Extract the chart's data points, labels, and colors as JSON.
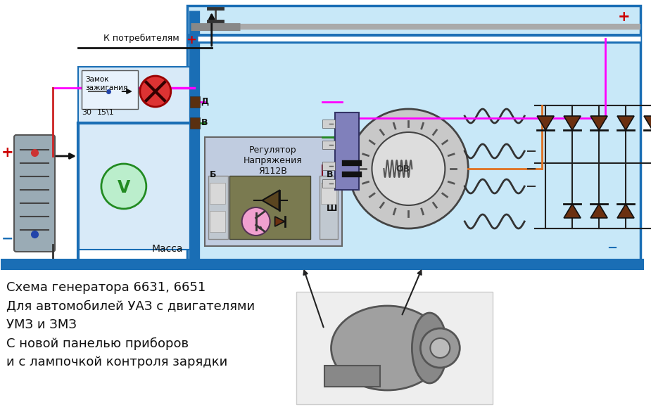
{
  "bg_color": "#ffffff",
  "title_text": "Схема генератора 6631, 6651\nДля автомобилей УАЗ с двигателями\nУМЗ и ЗМЗ\nС новой панелью приборов\nи с лампочкой контроля зарядки",
  "label_k_potrebitelyam": "К потребителям",
  "label_zamok": "Замок\nзажигания",
  "label_30": "30",
  "label_15_1": "15\\1",
  "label_massa": "Масса",
  "label_regulator": "Регулятор\nНапряжения\nЯ112В",
  "label_D": "Д",
  "label_B_top": "В",
  "label_B_right": "В",
  "label_B_left": "Б",
  "label_Sh": "Ш",
  "label_OV": "ОВ",
  "label_plus_left": "+",
  "label_minus_left": "−",
  "label_plus_right": "+",
  "label_minus_right": "−",
  "colors": {
    "blue_thick": "#1a6eb5",
    "green_line": "#228B22",
    "pink_line": "#ff00ff",
    "orange_line": "#e07020",
    "dark_red_line": "#800020",
    "dark_line": "#111111",
    "gray_bus": "#888888",
    "red_plus": "#cc0000",
    "blue_minus": "#1a6eb5",
    "panel_bg": "#c8e8f8",
    "left_panel_bg": "#d8eaf8",
    "reg_outer": "#aaaaaa",
    "reg_inner": "#7a7a50",
    "battery_fill": "#9aabb5",
    "diode_fill": "#6b3010"
  }
}
